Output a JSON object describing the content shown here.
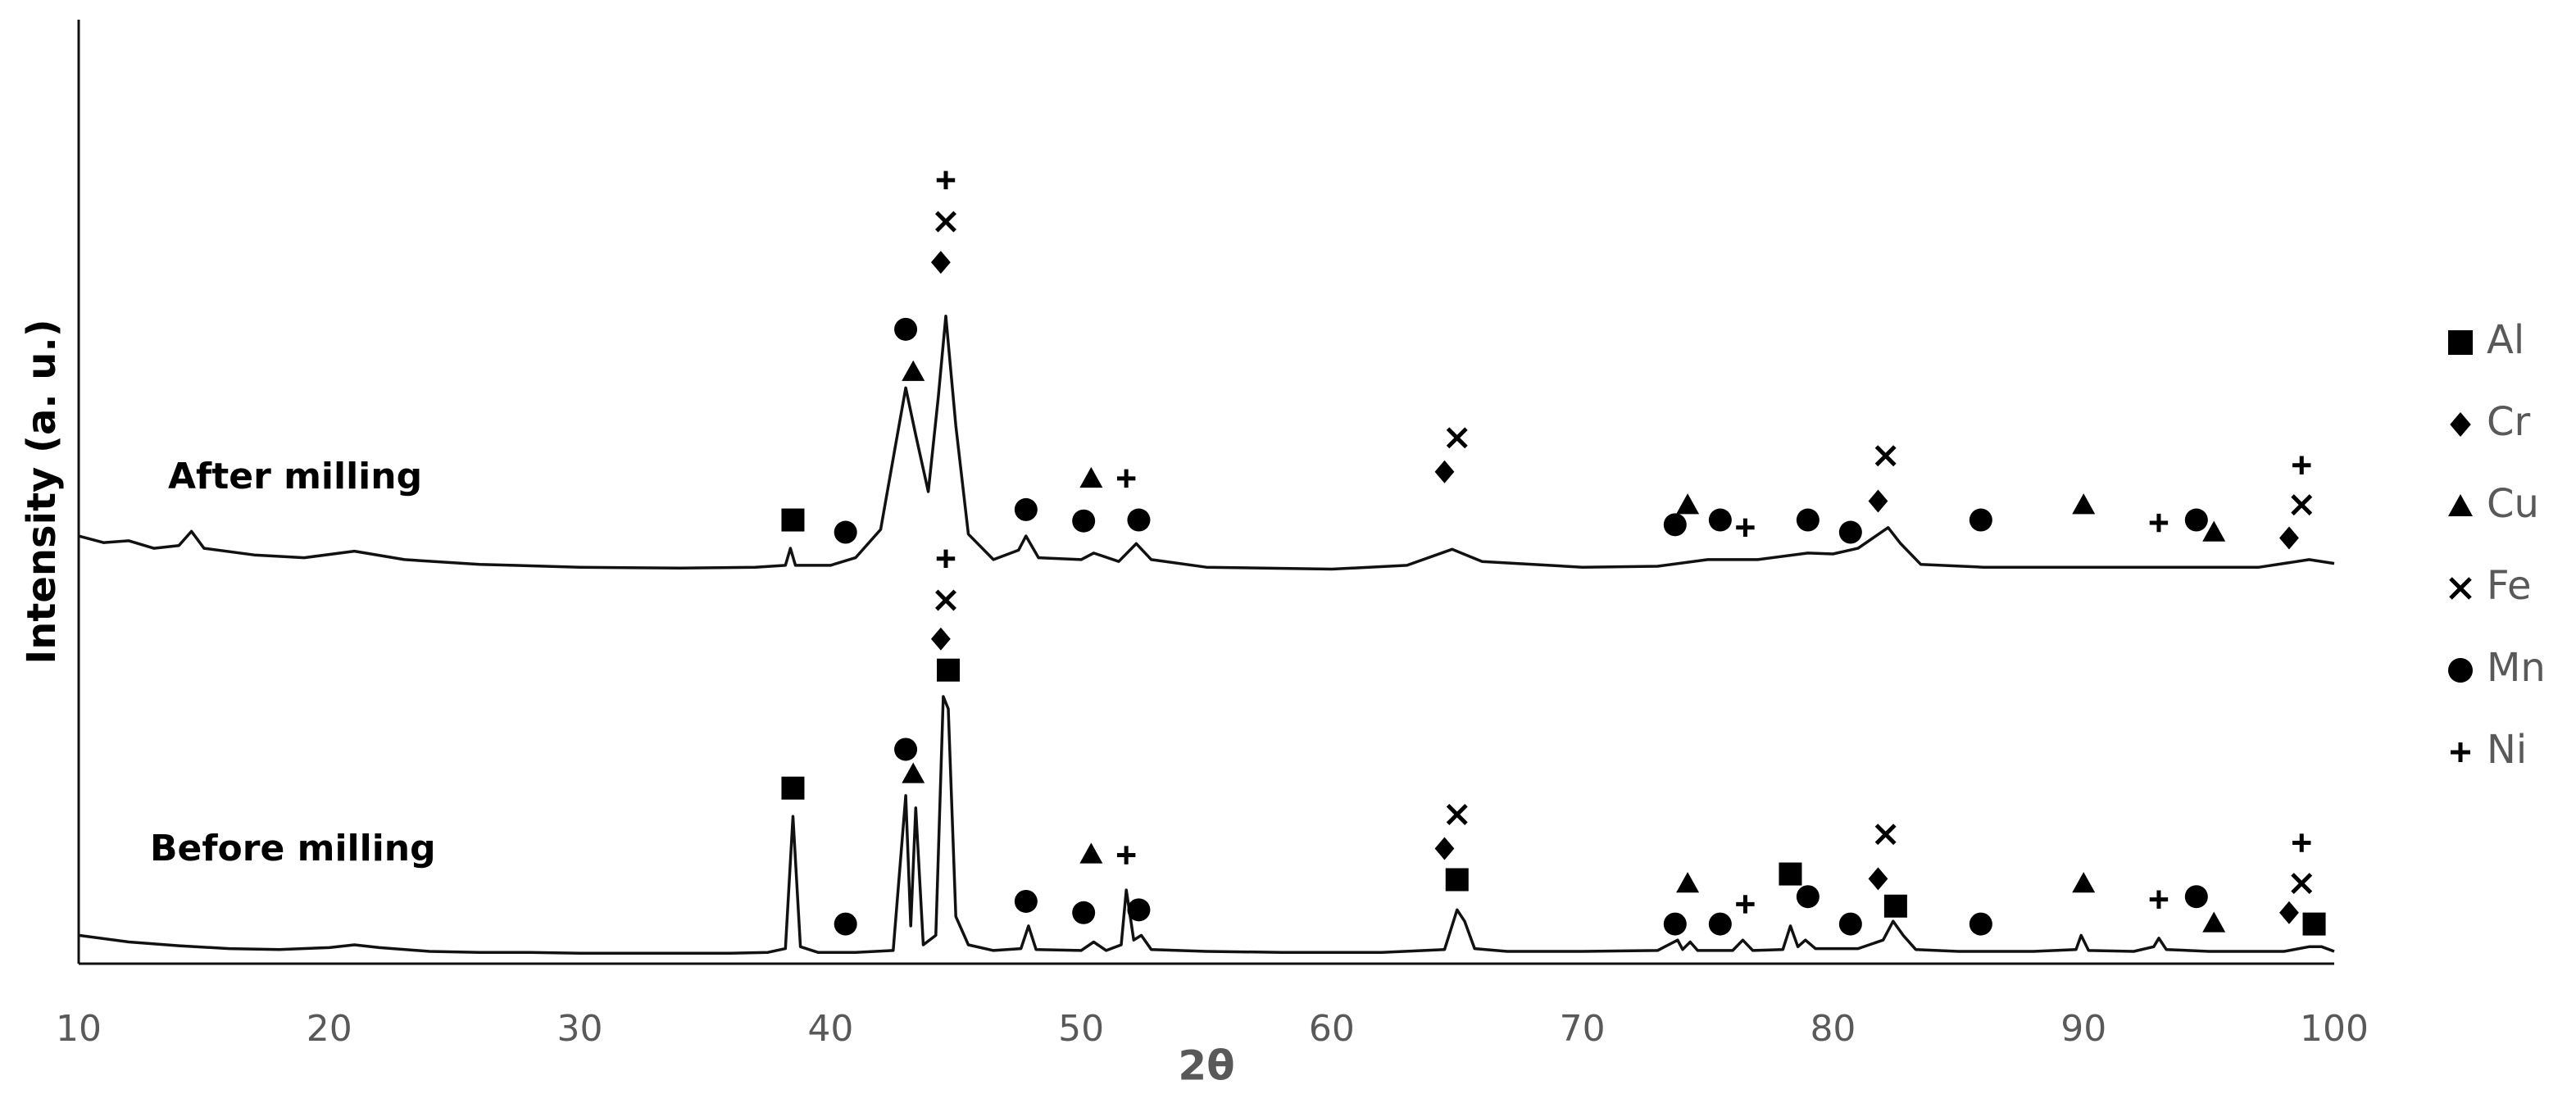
{
  "chart_data": {
    "type": "line",
    "xlabel": "2θ",
    "ylabel": "Intensity (a. u.)",
    "xlim": [
      10,
      100
    ],
    "xticks": [
      10,
      20,
      30,
      40,
      50,
      60,
      70,
      80,
      90,
      100
    ],
    "ylim": [
      0,
      100
    ],
    "series": [
      {
        "name": "After milling",
        "color": "#111111",
        "x": [
          10,
          11,
          12,
          13,
          14,
          14.5,
          15,
          17,
          19,
          21,
          23,
          26,
          30,
          34,
          37,
          38.2,
          38.4,
          38.6,
          40,
          41,
          42,
          42.6,
          43.0,
          43.4,
          43.9,
          44.3,
          44.6,
          45.0,
          45.5,
          46.5,
          47.5,
          47.8,
          48.3,
          50,
          50.5,
          51.5,
          52.2,
          52.8,
          55,
          60,
          63,
          64.8,
          66,
          70,
          73,
          75,
          77,
          79,
          80,
          81,
          82.2,
          82.7,
          83.5,
          86,
          90,
          94,
          97,
          99,
          100
        ],
        "values": [
          45.3,
          44.6,
          44.8,
          44.0,
          44.3,
          45.8,
          44.0,
          43.3,
          43.0,
          43.7,
          42.8,
          42.3,
          42.0,
          41.9,
          42.0,
          42.2,
          44.0,
          42.2,
          42.2,
          43.0,
          46,
          55,
          61.0,
          56,
          50.0,
          60,
          68.6,
          57,
          45.5,
          42.8,
          43.8,
          45.3,
          43.0,
          42.8,
          43.5,
          42.6,
          44.5,
          42.8,
          42.0,
          41.8,
          42.2,
          43.9,
          42.6,
          42.0,
          42.1,
          42.8,
          42.8,
          43.5,
          43.4,
          44,
          46.2,
          44.5,
          42.3,
          42.0,
          42.0,
          42.0,
          42.0,
          42.8,
          42.4
        ]
      },
      {
        "name": "Before milling",
        "color": "#111111",
        "x": [
          10,
          12,
          14,
          16,
          18,
          20,
          21,
          22,
          24,
          26,
          28,
          30,
          32,
          34,
          36,
          37.5,
          38.2,
          38.5,
          38.8,
          39.5,
          41,
          42.5,
          43.0,
          43.2,
          43.4,
          43.7,
          44.2,
          44.5,
          44.7,
          45.0,
          45.5,
          46.5,
          47.6,
          47.9,
          48.2,
          50,
          50.5,
          51,
          51.6,
          51.8,
          52.1,
          52.4,
          52.8,
          55,
          58,
          62,
          64.5,
          65.0,
          65.3,
          65.7,
          67,
          70,
          73,
          73.8,
          74.0,
          74.3,
          74.6,
          76,
          76.4,
          76.8,
          78,
          78.3,
          78.6,
          78.9,
          79.3,
          81,
          82,
          82.4,
          82.8,
          83.3,
          85,
          88,
          89.7,
          89.9,
          90.2,
          92,
          92.8,
          93.0,
          93.3,
          95,
          98,
          99,
          99.5,
          100
        ],
        "values": [
          3.0,
          2.3,
          1.9,
          1.6,
          1.5,
          1.7,
          2.0,
          1.7,
          1.3,
          1.2,
          1.2,
          1.1,
          1.1,
          1.1,
          1.1,
          1.2,
          1.6,
          15.6,
          1.8,
          1.2,
          1.2,
          1.4,
          17.8,
          4,
          16.5,
          2.0,
          3,
          28.3,
          27,
          5,
          2.0,
          1.4,
          1.6,
          4.0,
          1.5,
          1.4,
          2.3,
          1.4,
          2.0,
          7.8,
          2.5,
          3.0,
          1.5,
          1.3,
          1.2,
          1.2,
          1.5,
          5.7,
          4.5,
          1.6,
          1.3,
          1.3,
          1.4,
          2.5,
          1.5,
          2.3,
          1.4,
          1.4,
          2.5,
          1.4,
          1.5,
          4.0,
          1.8,
          2.5,
          1.6,
          1.6,
          2.5,
          4.5,
          3.0,
          1.5,
          1.3,
          1.3,
          1.5,
          3.0,
          1.4,
          1.3,
          1.8,
          2.7,
          1.5,
          1.3,
          1.3,
          1.8,
          1.8,
          1.3
        ]
      }
    ],
    "phases": [
      {
        "name": "Al",
        "marker": "square",
        "x": [
          38.5,
          44.7,
          38.5,
          65.0,
          78.3,
          82.5,
          99.2
        ],
        "values": [
          47.0,
          31.1,
          18.6,
          8.9,
          9.5,
          6.1,
          4.2
        ]
      },
      {
        "name": "Cr",
        "marker": "diamond",
        "x": [
          44.4,
          64.5,
          81.8,
          98.2,
          44.4,
          64.5,
          81.8,
          98.2
        ],
        "values": [
          74.3,
          52.1,
          49.0,
          45.1,
          34.4,
          12.2,
          9.0,
          5.4
        ]
      },
      {
        "name": "Cu",
        "marker": "triangle",
        "x": [
          43.3,
          50.4,
          74.2,
          90,
          95.2,
          43.3,
          50.4,
          74.2,
          90,
          95.2
        ],
        "values": [
          62.7,
          51.4,
          48.6,
          48.6,
          45.7,
          20.1,
          11.6,
          8.5,
          8.5,
          4.3
        ]
      },
      {
        "name": "Fe",
        "marker": "cross",
        "x": [
          44.6,
          65,
          82.1,
          98.7,
          44.6,
          65,
          82.1,
          98.7
        ],
        "values": [
          78.6,
          55.7,
          53.8,
          48.6,
          38.5,
          15.8,
          13.7,
          8.5
        ]
      },
      {
        "name": "Mn",
        "marker": "circle",
        "x": [
          43.0,
          40.6,
          47.8,
          50.1,
          52.3,
          73.7,
          75.5,
          79,
          80.7,
          85.9,
          94.5,
          43.0,
          40.6,
          47.8,
          50.1,
          52.3,
          73.7,
          75.5,
          79,
          80.7,
          85.9,
          94.5
        ],
        "values": [
          67.2,
          45.7,
          48.1,
          46.9,
          47.0,
          46.5,
          47.0,
          47.0,
          45.7,
          47.0,
          47.0,
          22.7,
          4.2,
          6.6,
          5.4,
          5.7,
          4.2,
          4.2,
          7.1,
          4.2,
          4.2,
          7.1
        ]
      },
      {
        "name": "Ni",
        "marker": "plus",
        "x": [
          44.6,
          51.8,
          76.5,
          93,
          98.7,
          44.6,
          51.8,
          76.5,
          93,
          98.7
        ],
        "values": [
          83.0,
          51.4,
          46.2,
          46.7,
          52.8,
          42.9,
          11.5,
          6.3,
          6.8,
          12.8
        ]
      }
    ]
  }
}
